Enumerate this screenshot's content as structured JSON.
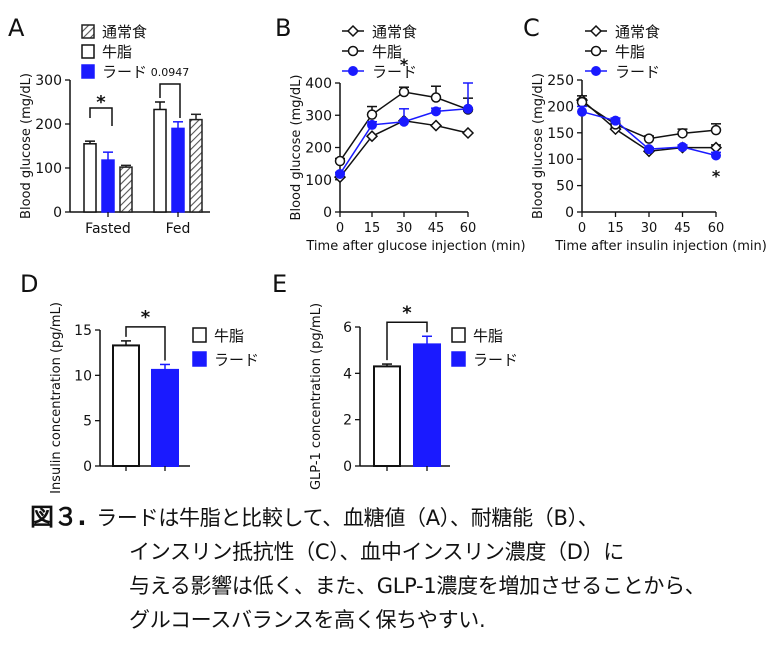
{
  "colors": {
    "normal_fill": "#ffffff",
    "beef_fill": "#ffffff",
    "lard_fill": "#1a1aff",
    "hatch": "#555555",
    "axis": "#111111"
  },
  "chart_data": [
    {
      "panel": "A",
      "type": "bar",
      "ylabel": "Blood glucose (mg/dL)",
      "ylim": [
        0,
        300
      ],
      "yticks": [
        0,
        100,
        200,
        300
      ],
      "categories": [
        "Fasted",
        "Fed"
      ],
      "series": [
        {
          "name": "牛脂",
          "values": [
            155,
            233
          ],
          "err": [
            6,
            17
          ]
        },
        {
          "name": "ラード",
          "values": [
            118,
            190
          ],
          "err": [
            18,
            15
          ]
        },
        {
          "name": "通常食",
          "values": [
            102,
            210
          ],
          "err": [
            4,
            12
          ]
        }
      ],
      "legend": [
        "通常食",
        "牛脂",
        "ラード"
      ],
      "annotations": [
        "*",
        "0.0947"
      ]
    },
    {
      "panel": "B",
      "type": "line",
      "xlabel": "Time after glucose injection (min)",
      "ylabel": "Blood glucose (mg/dL)",
      "x": [
        0,
        15,
        30,
        45,
        60
      ],
      "ylim": [
        0,
        400
      ],
      "yticks": [
        0,
        100,
        200,
        300,
        400
      ],
      "series": [
        {
          "name": "通常食",
          "values": [
            108,
            235,
            283,
            268,
            245
          ],
          "err": [
            0,
            0,
            0,
            0,
            0
          ]
        },
        {
          "name": "牛脂",
          "values": [
            158,
            302,
            372,
            355,
            318
          ],
          "err": [
            8,
            25,
            15,
            35,
            35
          ]
        },
        {
          "name": "ラード",
          "values": [
            118,
            270,
            280,
            312,
            320
          ],
          "err": [
            5,
            10,
            40,
            10,
            80
          ]
        }
      ],
      "annotations": [
        "*"
      ]
    },
    {
      "panel": "C",
      "type": "line",
      "xlabel": "Time after insulin injection (min)",
      "ylabel": "Blood glucose (mg/dL)",
      "x": [
        0,
        15,
        30,
        45,
        60
      ],
      "ylim": [
        0,
        250
      ],
      "yticks": [
        0,
        50,
        100,
        150,
        200,
        250
      ],
      "series": [
        {
          "name": "通常食",
          "values": [
            212,
            157,
            115,
            122,
            122
          ],
          "err": [
            8,
            4,
            3,
            3,
            5
          ]
        },
        {
          "name": "牛脂",
          "values": [
            208,
            166,
            139,
            149,
            155
          ],
          "err": [
            6,
            6,
            5,
            8,
            12
          ]
        },
        {
          "name": "ラード",
          "values": [
            190,
            173,
            119,
            123,
            107
          ],
          "err": [
            10,
            5,
            3,
            4,
            6
          ]
        }
      ],
      "annotations": [
        "*"
      ]
    },
    {
      "panel": "D",
      "type": "bar",
      "ylabel": "Insulin concentration (pg/mL)",
      "ylim": [
        0,
        15
      ],
      "yticks": [
        0,
        5,
        10,
        15
      ],
      "categories": [
        "牛脂",
        "ラード"
      ],
      "values": [
        13.3,
        10.6
      ],
      "err": [
        0.5,
        0.6
      ],
      "legend": [
        "牛脂",
        "ラード"
      ],
      "annotations": [
        "*"
      ]
    },
    {
      "panel": "E",
      "type": "bar",
      "ylabel": "GLP-1 concentration (pg/mL)",
      "ylim": [
        0,
        6
      ],
      "yticks": [
        0,
        2,
        4,
        6
      ],
      "categories": [
        "牛脂",
        "ラード"
      ],
      "values": [
        4.3,
        5.25
      ],
      "err": [
        0.1,
        0.35
      ],
      "legend": [
        "牛脂",
        "ラード"
      ],
      "annotations": [
        "*"
      ]
    }
  ],
  "caption": {
    "label": "図３.",
    "lines": [
      "ラードは牛脂と比較して、血糖値（A）、耐糖能（B）、",
      "インスリン抵抗性（C）、血中インスリン濃度（D）に",
      "与える影響は低く、また、GLP-1濃度を増加させることから、",
      "グルコースバランスを高く保ちやすい."
    ]
  }
}
